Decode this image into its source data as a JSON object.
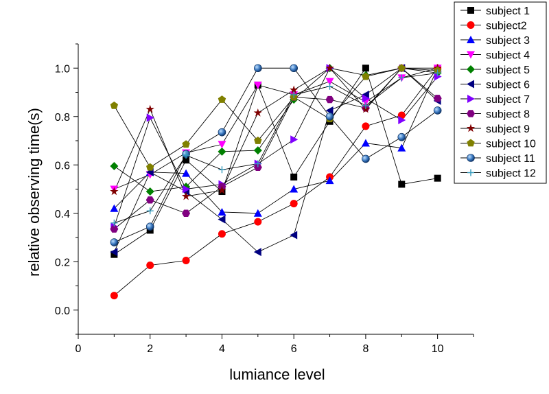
{
  "chart_data": {
    "type": "scatter",
    "title": "",
    "xlabel": "lumiance level",
    "ylabel": "relative observing time(s)",
    "xlim": [
      0,
      11
    ],
    "ylim": [
      -0.1,
      1.1
    ],
    "x_ticks": [
      "0",
      "2",
      "4",
      "6",
      "8",
      "10"
    ],
    "y_ticks": [
      "0.0",
      "0.2",
      "0.4",
      "0.6",
      "0.8",
      "1.0"
    ],
    "grid": false,
    "legend_position": "top-right",
    "x": [
      1,
      2,
      3,
      4,
      5,
      6,
      7,
      8,
      9,
      10
    ],
    "series": [
      {
        "name": "subject 1",
        "color": "#000000",
        "marker": "square",
        "values": [
          0.23,
          0.33,
          0.62,
          0.49,
          0.93,
          0.55,
          0.78,
          1.0,
          0.52,
          0.545
        ]
      },
      {
        "name": "subject2",
        "color": "#ff0000",
        "marker": "circle",
        "values": [
          0.06,
          0.185,
          0.205,
          0.315,
          0.365,
          0.44,
          0.55,
          0.76,
          0.805,
          1.0
        ]
      },
      {
        "name": "subject 3",
        "color": "#0000ff",
        "marker": "triangle-up",
        "values": [
          0.42,
          0.57,
          0.565,
          0.405,
          0.4,
          0.5,
          0.535,
          0.69,
          0.67,
          1.0
        ]
      },
      {
        "name": "subject 4",
        "color": "#ff00ff",
        "marker": "triangle-down",
        "values": [
          0.5,
          0.56,
          0.65,
          0.685,
          0.93,
          0.89,
          0.945,
          0.86,
          0.96,
          1.0
        ]
      },
      {
        "name": "subject 5",
        "color": "#008000",
        "marker": "diamond",
        "values": [
          0.595,
          0.49,
          0.51,
          0.655,
          0.66,
          0.87,
          1.0,
          0.97,
          1.0,
          0.98
        ]
      },
      {
        "name": "subject 6",
        "color": "#000080",
        "marker": "triangle-left",
        "values": [
          0.24,
          0.57,
          0.49,
          0.375,
          0.24,
          0.31,
          0.825,
          0.89,
          1.0,
          0.865
        ]
      },
      {
        "name": "subject 7",
        "color": "#8000ff",
        "marker": "triangle-right",
        "values": [
          0.345,
          0.795,
          0.5,
          0.52,
          0.605,
          0.705,
          1.0,
          0.875,
          0.785,
          0.965
        ]
      },
      {
        "name": "subject 8",
        "color": "#800080",
        "marker": "hexagon",
        "values": [
          0.335,
          0.455,
          0.4,
          0.51,
          0.59,
          0.88,
          0.87,
          0.835,
          1.0,
          0.875
        ]
      },
      {
        "name": "subject 9",
        "color": "#800000",
        "marker": "star",
        "values": [
          0.49,
          0.83,
          0.47,
          0.495,
          0.815,
          0.91,
          1.0,
          0.83,
          1.0,
          1.0
        ]
      },
      {
        "name": "subject 10",
        "color": "#808000",
        "marker": "pentagon",
        "values": [
          0.845,
          0.59,
          0.685,
          0.87,
          0.7,
          0.88,
          0.79,
          0.965,
          1.0,
          0.99
        ]
      },
      {
        "name": "subject 11",
        "color": "#1f5faa",
        "marker": "sphere",
        "values": [
          0.28,
          0.345,
          0.645,
          0.735,
          1.0,
          1.0,
          0.8,
          0.625,
          0.715,
          0.825
        ]
      },
      {
        "name": "subject 12",
        "color": "#3399bb",
        "marker": "plus",
        "values": [
          0.36,
          0.41,
          0.64,
          0.58,
          0.605,
          0.89,
          0.925,
          0.845,
          0.96,
          0.98
        ]
      }
    ]
  }
}
